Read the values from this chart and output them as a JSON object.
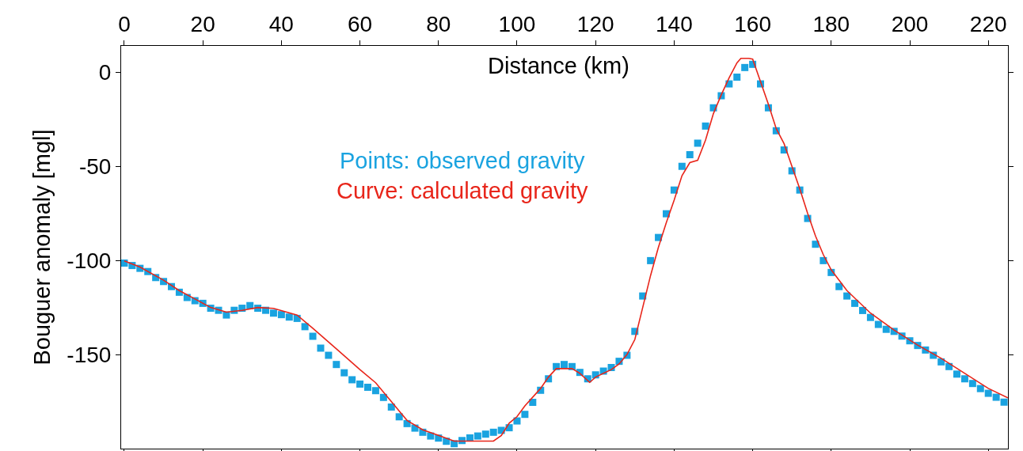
{
  "chart_data": {
    "type": "scatter",
    "xlabel": "Distance (km)",
    "ylabel": "Bouguer anomaly [mgl]",
    "xlim": [
      -0.8,
      225
    ],
    "xticks": [
      0,
      20,
      40,
      60,
      80,
      100,
      120,
      140,
      160,
      180,
      200,
      220
    ],
    "ylim": [
      -200,
      14
    ],
    "yticks": [
      0,
      -50,
      -100,
      -150
    ],
    "grid": false,
    "legend": false,
    "series": [
      {
        "name": "Points: observed gravity",
        "marker": "square",
        "color": "#1aa3e0",
        "x": [
          0,
          2,
          4,
          6,
          8,
          10,
          12,
          14,
          16,
          18,
          20,
          22,
          24,
          26,
          28,
          30,
          32,
          34,
          36,
          38,
          40,
          42,
          44,
          46,
          48,
          50,
          52,
          54,
          56,
          58,
          60,
          62,
          64,
          66,
          68,
          70,
          72,
          74,
          76,
          78,
          80,
          82,
          84,
          86,
          88,
          90,
          92,
          94,
          96,
          98,
          100,
          102,
          104,
          106,
          108,
          110,
          112,
          114,
          116,
          118,
          120,
          122,
          124,
          126,
          128,
          130,
          132,
          134,
          136,
          138,
          140,
          142,
          144,
          146,
          148,
          150,
          152,
          154,
          156,
          158,
          160,
          162,
          164,
          166,
          168,
          170,
          172,
          174,
          176,
          178,
          180,
          182,
          184,
          186,
          188,
          190,
          192,
          194,
          196,
          198,
          200,
          202,
          204,
          206,
          208,
          210,
          212,
          214,
          216,
          218,
          220,
          222,
          224
        ],
        "values": [
          -101.4,
          -102.7,
          -104.2,
          -105.9,
          -109.1,
          -111.2,
          -113.9,
          -116.9,
          -119.7,
          -121.4,
          -122.8,
          -125.4,
          -126.5,
          -129,
          -126.5,
          -125.4,
          -124,
          -125.4,
          -126.5,
          -128,
          -128.8,
          -130.1,
          -130.8,
          -135.2,
          -140.3,
          -146.6,
          -150.4,
          -155.3,
          -159.7,
          -163.4,
          -165.7,
          -167.4,
          -169.2,
          -172.8,
          -177.9,
          -183.1,
          -186.7,
          -189.1,
          -191.3,
          -193.3,
          -194.4,
          -196.1,
          -197.4,
          -195.7,
          -194.3,
          -193.3,
          -192.3,
          -191.3,
          -190.3,
          -188.9,
          -185.3,
          -181.8,
          -175.4,
          -169,
          -162.9,
          -156.4,
          -155.3,
          -156.4,
          -159.5,
          -162.9,
          -160.8,
          -158.8,
          -156.9,
          -153.6,
          -150.4,
          -137.7,
          -118.9,
          -100.1,
          -87.8,
          -75.2,
          -62.6,
          -50,
          -43.8,
          -37.7,
          -28.6,
          -18.9,
          -12.5,
          -6.2,
          -2.6,
          2.5,
          4.2,
          -6.2,
          -18.9,
          -31.1,
          -41.3,
          -52.4,
          -62.6,
          -77.7,
          -91.4,
          -100.1,
          -106.4,
          -113.9,
          -118.9,
          -122.8,
          -126.6,
          -130.3,
          -134,
          -136.6,
          -137.7,
          -140.2,
          -142.7,
          -145.2,
          -147.6,
          -150.4,
          -153.9,
          -156.4,
          -160.4,
          -162.9,
          -165.4,
          -168.1,
          -170.6,
          -172.7,
          -175.3
        ]
      },
      {
        "name": "Curve: calculated gravity",
        "type": "line",
        "line_style": "solid",
        "color": "#e8251a",
        "x": [
          0,
          4,
          10,
          14,
          18,
          22,
          26,
          30,
          34,
          38,
          44,
          48,
          54,
          60,
          64,
          68,
          72,
          76,
          80,
          84,
          88,
          94,
          96,
          98,
          100,
          102,
          106,
          108,
          110,
          112,
          114,
          116,
          118.5,
          120,
          124,
          126,
          128,
          130,
          132,
          134,
          136,
          138,
          140,
          142,
          144,
          146,
          148,
          150,
          152,
          154,
          156,
          157,
          159,
          160,
          162,
          164,
          166,
          168,
          170,
          172,
          174,
          176,
          178,
          180,
          184,
          190,
          196,
          202,
          208,
          214,
          220,
          225
        ],
        "values": [
          -100.3,
          -103.5,
          -110.5,
          -116,
          -120.5,
          -125,
          -127.5,
          -126.5,
          -125,
          -125.5,
          -129,
          -136,
          -147,
          -158,
          -165,
          -175,
          -185,
          -190,
          -193,
          -196,
          -196,
          -196,
          -193,
          -186.5,
          -183,
          -177.3,
          -168,
          -162,
          -157.5,
          -157.4,
          -157.5,
          -160,
          -164.8,
          -162,
          -158,
          -155,
          -150,
          -142,
          -125,
          -108,
          -93,
          -80,
          -68,
          -55,
          -48,
          -46.8,
          -36,
          -22,
          -12,
          -3,
          5,
          7.4,
          7.4,
          7,
          -5,
          -17,
          -30,
          -38,
          -50,
          -62,
          -75,
          -87,
          -97,
          -105,
          -116,
          -128,
          -137,
          -145,
          -152,
          -160,
          -168,
          -173
        ]
      }
    ]
  }
}
